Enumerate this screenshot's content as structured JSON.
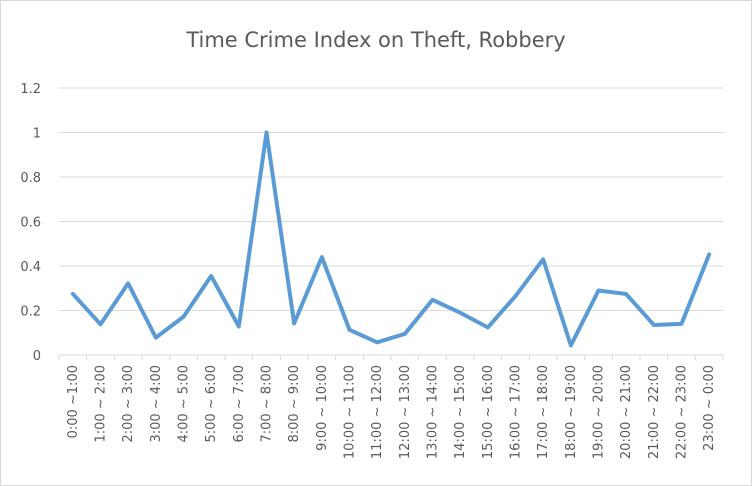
{
  "chart_data": {
    "type": "line",
    "title": "Time Crime Index on Theft, Robbery",
    "xlabel": "",
    "ylabel": "",
    "ylim": [
      0,
      1.2
    ],
    "yticks": [
      "0",
      "0.2",
      "0.4",
      "0.6",
      "0.8",
      "1",
      "1.2"
    ],
    "grid": true,
    "legend": "none",
    "line_color": "#5b9bd5",
    "categories": [
      "0:00 ~1:00",
      "1:00 ~ 2:00",
      "2:00 ~ 3:00",
      "3:00 ~ 4:00",
      "4:00 ~ 5:00",
      "5:00 ~ 6:00",
      "6:00 ~ 7:00",
      "7:00 ~ 8:00",
      "8:00 ~ 9:00",
      "9:00 ~ 10:00",
      "10:00 ~ 11:00",
      "11:00 ~ 12:00",
      "12:00 ~ 13:00",
      "13:00 ~ 14:00",
      "14:00 ~ 15:00",
      "15:00 ~ 16:00",
      "16:00 ~ 17:00",
      "17:00 ~ 18:00",
      "18:00 ~ 19:00",
      "19:00 ~ 20:00",
      "20:00 ~ 21:00",
      "21:00 ~ 22:00",
      "22:00 ~ 23:00",
      "23:00 ~ 0:00"
    ],
    "series": [
      {
        "values": [
          0.275,
          0.138,
          0.322,
          0.078,
          0.172,
          0.355,
          0.128,
          1.0,
          0.142,
          0.44,
          0.113,
          0.057,
          0.095,
          0.248,
          0.19,
          0.124,
          0.265,
          0.43,
          0.043,
          0.29,
          0.274,
          0.135,
          0.14,
          0.452
        ]
      }
    ]
  }
}
